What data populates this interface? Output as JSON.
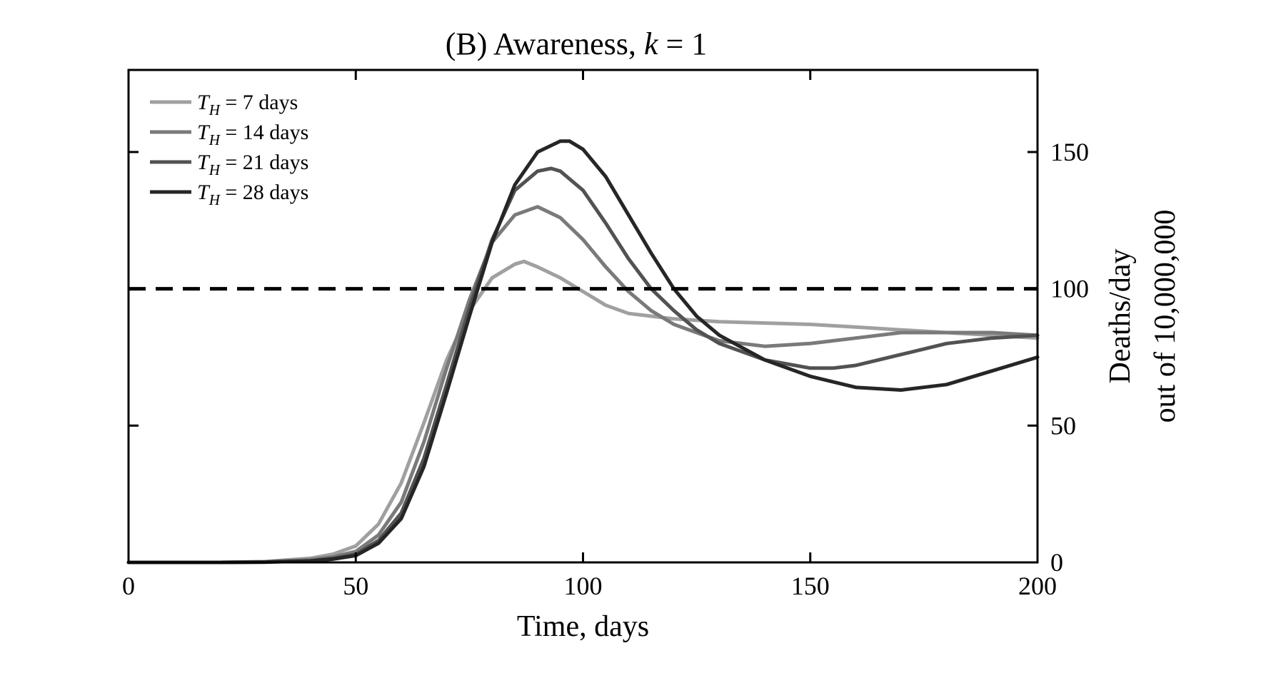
{
  "chart_data": {
    "type": "line",
    "title": "(B) Awareness, k = 1",
    "title_parts": {
      "prefix": "(B) Awareness,",
      "var": "k",
      "rest": "= 1"
    },
    "xlabel": "Time, days",
    "ylabel_line1": "Deaths/day",
    "ylabel_line2": "out of 10,000,000",
    "xlim": [
      0,
      200
    ],
    "ylim": [
      0,
      180
    ],
    "xticks": [
      0,
      50,
      100,
      150,
      200
    ],
    "yticks": [
      0,
      50,
      100,
      150
    ],
    "y_axis_side": "right",
    "legend_position": "top-left",
    "grid": false,
    "threshold": {
      "y": 100,
      "style": "dashed",
      "color": "#000000"
    },
    "series": [
      {
        "name": "T_H = 7 days",
        "legend": {
          "var": "T",
          "sub": "H",
          "rest": " = 7 days"
        },
        "color": "#a0a0a0",
        "x": [
          0,
          20,
          30,
          40,
          45,
          50,
          55,
          60,
          65,
          70,
          75,
          80,
          85,
          87,
          90,
          95,
          100,
          105,
          110,
          115,
          120,
          130,
          140,
          150,
          160,
          170,
          180,
          190,
          200
        ],
        "y": [
          0,
          0,
          0.3,
          1.5,
          3,
          6,
          14,
          29,
          51,
          74,
          92,
          104,
          109,
          110,
          108,
          104,
          99,
          94,
          91,
          90,
          89,
          88,
          87.5,
          87,
          86,
          85,
          84,
          83,
          82
        ]
      },
      {
        "name": "T_H = 14 days",
        "legend": {
          "var": "T",
          "sub": "H",
          "rest": " = 14 days"
        },
        "color": "#7a7a7a",
        "x": [
          0,
          20,
          30,
          40,
          45,
          50,
          55,
          60,
          65,
          70,
          75,
          80,
          85,
          90,
          95,
          100,
          105,
          110,
          115,
          120,
          125,
          130,
          140,
          150,
          160,
          170,
          180,
          190,
          200
        ],
        "y": [
          0,
          0,
          0.2,
          1,
          2,
          4,
          10,
          22,
          44,
          71,
          96,
          117,
          127,
          130,
          126,
          118,
          108,
          99,
          92,
          87,
          84,
          81,
          79,
          80,
          82,
          84,
          84,
          84,
          83
        ]
      },
      {
        "name": "T_H = 21 days",
        "legend": {
          "var": "T",
          "sub": "H",
          "rest": " = 21 days"
        },
        "color": "#525252",
        "x": [
          0,
          20,
          30,
          40,
          45,
          50,
          55,
          60,
          65,
          70,
          75,
          80,
          85,
          90,
          93,
          95,
          100,
          105,
          110,
          115,
          120,
          125,
          130,
          140,
          150,
          155,
          160,
          170,
          180,
          190,
          200
        ],
        "y": [
          0,
          0,
          0.1,
          0.6,
          1.5,
          3,
          8,
          18,
          38,
          65,
          93,
          118,
          136,
          143,
          144,
          143,
          136,
          124,
          111,
          100,
          92,
          85,
          80,
          74,
          71,
          71,
          72,
          76,
          80,
          82,
          83
        ]
      },
      {
        "name": "T_H = 28 days",
        "legend": {
          "var": "T",
          "sub": "H",
          "rest": " = 28 days"
        },
        "color": "#262626",
        "x": [
          0,
          20,
          30,
          40,
          45,
          50,
          55,
          60,
          65,
          70,
          75,
          80,
          85,
          90,
          95,
          97,
          100,
          105,
          110,
          115,
          120,
          125,
          130,
          140,
          150,
          160,
          170,
          180,
          190,
          200
        ],
        "y": [
          0,
          0,
          0.1,
          0.5,
          1.2,
          2.5,
          7,
          16,
          35,
          62,
          90,
          117,
          138,
          150,
          154,
          154,
          151,
          141,
          127,
          113,
          100,
          90,
          83,
          74,
          68,
          64,
          63,
          65,
          70,
          75
        ]
      }
    ]
  }
}
